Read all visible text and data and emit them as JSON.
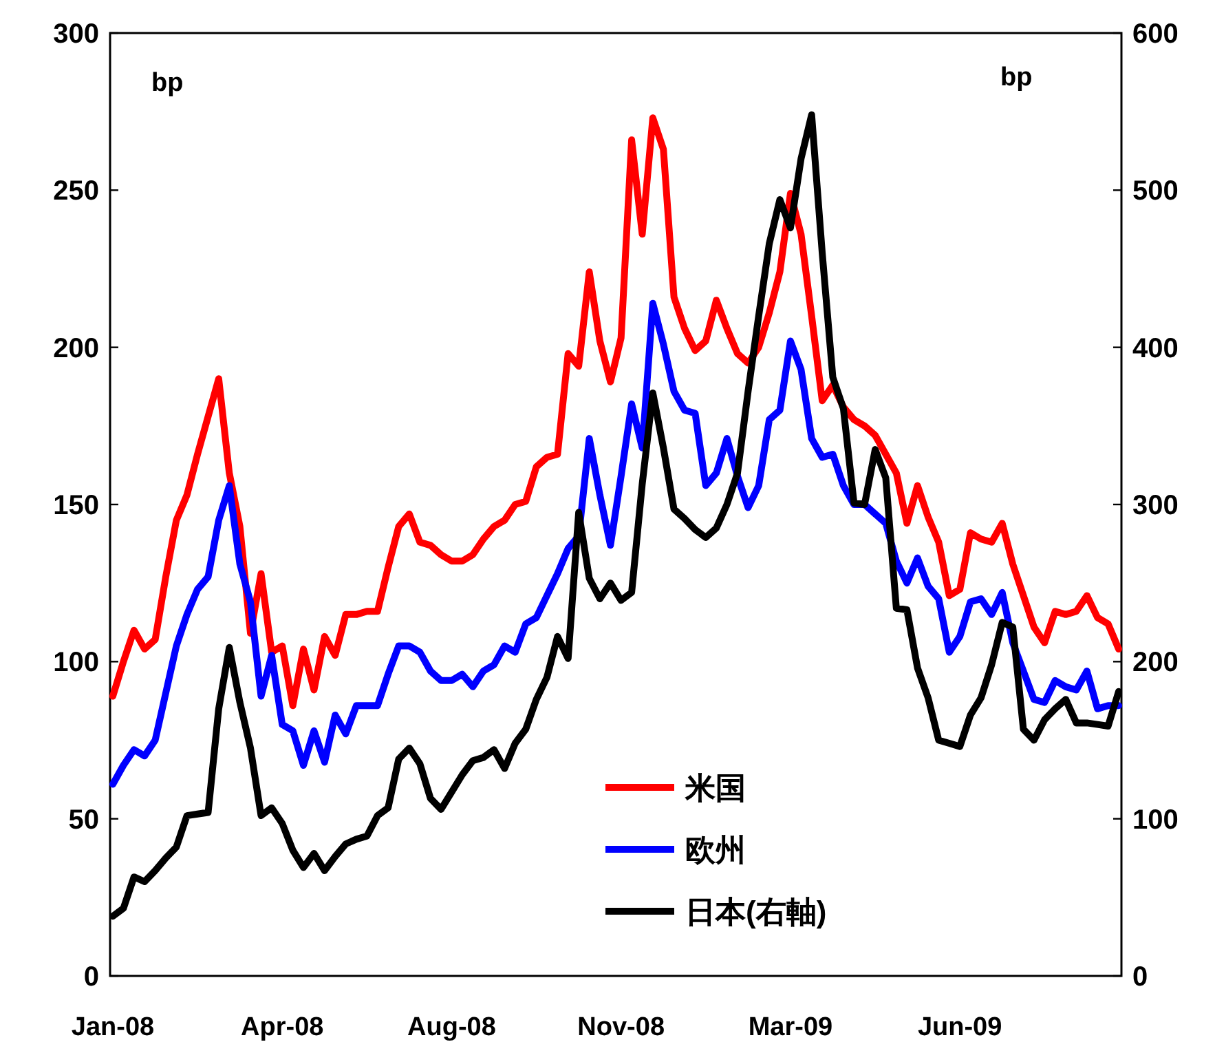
{
  "chart_data": {
    "type": "line",
    "line_style": "solid",
    "legend": "bottom right",
    "ylabel": "bp",
    "y2label": "bp",
    "categories": [
      "Jan-08",
      null,
      null,
      null,
      null,
      null,
      null,
      null,
      null,
      null,
      null,
      null,
      null,
      null,
      null,
      null,
      "Apr-08",
      null,
      null,
      null,
      null,
      null,
      null,
      null,
      null,
      null,
      null,
      null,
      null,
      null,
      null,
      null,
      "Aug-08",
      null,
      null,
      null,
      null,
      null,
      null,
      null,
      null,
      null,
      null,
      null,
      null,
      null,
      null,
      null,
      "Nov-08",
      null,
      null,
      null,
      null,
      null,
      null,
      null,
      null,
      null,
      null,
      null,
      null,
      null,
      null,
      null,
      "Mar-09",
      null,
      null,
      null,
      null,
      null,
      null,
      null,
      null,
      null,
      null,
      null,
      null,
      null,
      null,
      null,
      "Jun-09",
      null,
      null,
      null,
      null,
      null,
      null,
      null,
      null,
      null,
      null,
      null,
      null,
      null,
      null,
      null
    ],
    "ylim": [
      0,
      300
    ],
    "yticks": [
      0,
      50,
      100,
      150,
      200,
      250,
      300
    ],
    "y2lim": [
      0,
      600
    ],
    "y2ticks": [
      0,
      100,
      200,
      300,
      400,
      500,
      600
    ],
    "series": [
      {
        "name": "米国",
        "color": "#ff0000",
        "values": [
          89,
          100,
          110,
          104,
          107,
          127,
          145,
          153,
          166,
          178,
          190,
          160,
          143,
          109,
          128,
          103,
          105,
          86,
          104,
          91,
          108,
          102,
          115,
          115,
          116,
          116,
          130,
          143,
          147,
          138,
          137,
          134,
          132,
          132,
          134,
          139,
          143,
          145,
          150,
          151,
          162,
          165,
          166,
          198,
          194,
          224,
          202,
          189,
          203,
          266,
          236,
          273,
          263,
          216,
          206,
          199,
          202,
          215,
          206,
          198,
          195,
          200,
          211,
          224,
          249,
          236,
          210,
          183,
          188,
          181,
          177,
          175,
          172,
          166,
          160,
          144,
          156,
          146,
          138,
          121,
          123,
          141,
          139,
          138,
          144,
          131,
          121,
          111,
          106,
          116,
          115,
          116,
          121,
          114,
          112,
          104
        ]
      },
      {
        "name": "欧州",
        "color": "#0000ff",
        "values": [
          61,
          67,
          72,
          70,
          75,
          90,
          105,
          115,
          123,
          127,
          145,
          156,
          131,
          119,
          89,
          102,
          80,
          78,
          67,
          78,
          68,
          83,
          77,
          86,
          86,
          86,
          96,
          105,
          105,
          103,
          97,
          94,
          94,
          96,
          92,
          97,
          99,
          105,
          103,
          112,
          114,
          121,
          128,
          136,
          140,
          171,
          153,
          137,
          159,
          182,
          168,
          214,
          201,
          186,
          180,
          179,
          156,
          160,
          171,
          159,
          149,
          156,
          177,
          180,
          202,
          193,
          171,
          165,
          166,
          156,
          150,
          150,
          147,
          144,
          132,
          125,
          133,
          124,
          120,
          103,
          108,
          119,
          120,
          115,
          122,
          106,
          97,
          88,
          87,
          94,
          92,
          91,
          97,
          85,
          86,
          86
        ]
      },
      {
        "name": "日本(右軸)",
        "color": "#000000",
        "axis": "y2",
        "values": [
          38,
          43,
          63,
          60,
          67,
          75,
          82,
          102,
          103,
          104,
          170,
          209,
          174,
          145,
          102,
          107,
          97,
          80,
          69,
          78,
          67,
          76,
          84,
          87,
          89,
          102,
          107,
          138,
          145,
          135,
          113,
          106,
          117,
          128,
          137,
          139,
          144,
          132,
          148,
          157,
          176,
          190,
          216,
          202,
          295,
          253,
          240,
          250,
          239,
          244,
          313,
          371,
          336,
          297,
          291,
          284,
          279,
          285,
          300,
          320,
          372,
          420,
          466,
          494,
          476,
          520,
          548,
          460,
          381,
          361,
          301,
          300,
          335,
          317,
          234,
          233,
          196,
          177,
          150,
          148,
          146,
          166,
          177,
          198,
          225,
          222,
          157,
          150,
          163,
          170,
          176,
          161,
          161,
          160,
          159,
          181
        ]
      }
    ]
  }
}
